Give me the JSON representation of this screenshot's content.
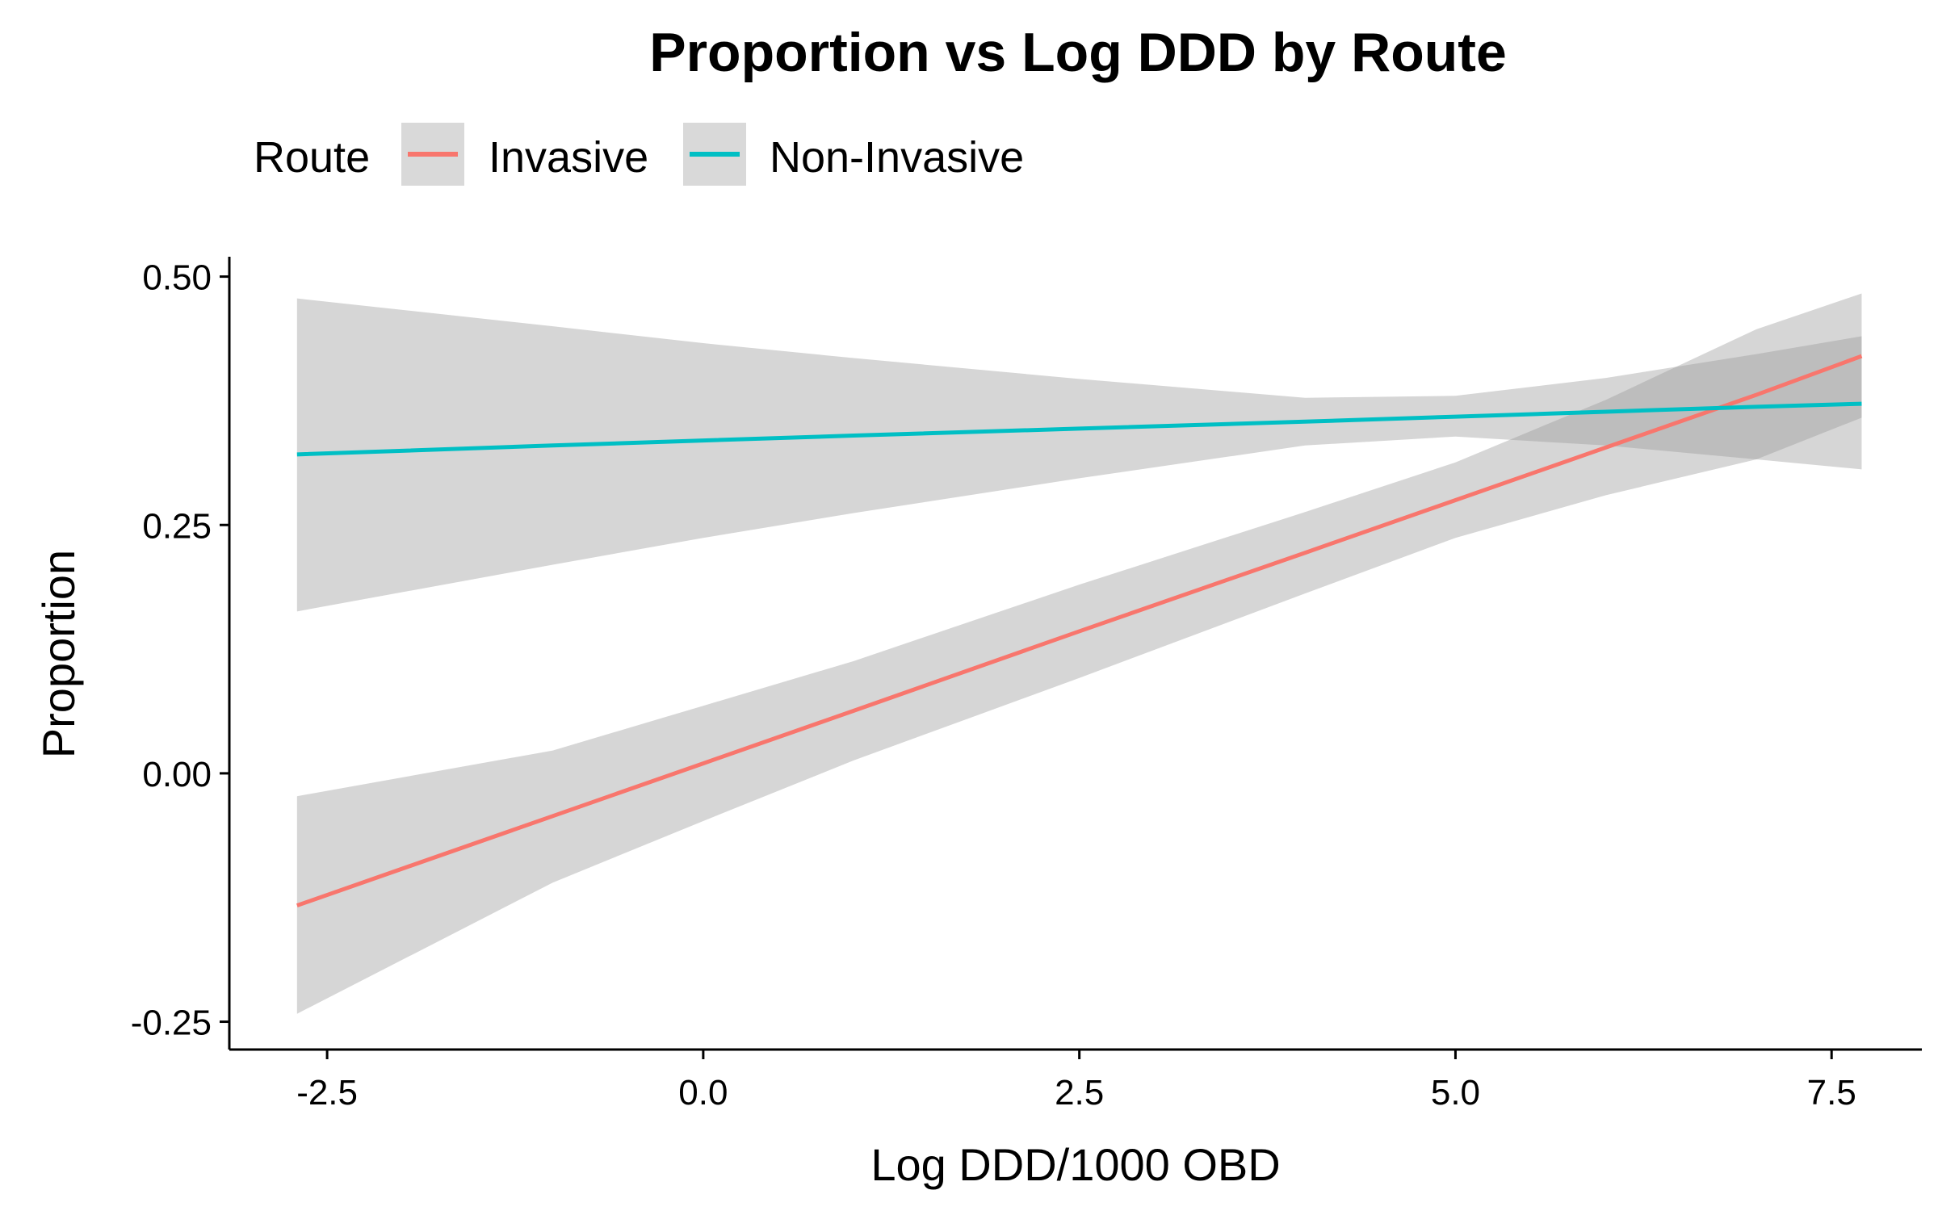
{
  "chart_data": {
    "type": "line",
    "title": "Proportion vs Log DDD by Route",
    "xlabel": "Log DDD/1000 OBD",
    "ylabel": "Proportion",
    "legend": {
      "title": "Route",
      "placement": "top-left",
      "entries": [
        "Invasive",
        "Non-Invasive"
      ]
    },
    "xlim": [
      -3.15,
      8.1
    ],
    "ylim": [
      -0.278,
      0.52
    ],
    "x_ticks": [
      -2.5,
      0.0,
      2.5,
      5.0,
      7.5
    ],
    "x_tick_labels": [
      "-2.5",
      "0.0",
      "2.5",
      "5.0",
      "7.5"
    ],
    "y_ticks": [
      -0.25,
      0.0,
      0.25,
      0.5
    ],
    "y_tick_labels": [
      "-0.25",
      "0.00",
      "0.25",
      "0.50"
    ],
    "grid": false,
    "series": [
      {
        "name": "Invasive",
        "color": "#F8766D",
        "x": [
          -2.7,
          -1.0,
          0.0,
          1.0,
          2.5,
          4.0,
          5.0,
          6.0,
          7.0,
          7.7
        ],
        "y": [
          -0.133,
          -0.043,
          0.01,
          0.063,
          0.143,
          0.222,
          0.275,
          0.328,
          0.381,
          0.42
        ],
        "ci_lower": [
          -0.242,
          -0.11,
          -0.048,
          0.013,
          0.096,
          0.181,
          0.237,
          0.28,
          0.316,
          0.358
        ],
        "ci_upper": [
          -0.023,
          0.023,
          0.068,
          0.113,
          0.19,
          0.263,
          0.313,
          0.376,
          0.447,
          0.483
        ]
      },
      {
        "name": "Non-Invasive",
        "color": "#00BFC4",
        "x": [
          -2.7,
          -1.0,
          0.0,
          1.0,
          2.5,
          4.0,
          5.0,
          6.0,
          7.0,
          7.7
        ],
        "y": [
          0.321,
          0.33,
          0.335,
          0.34,
          0.347,
          0.354,
          0.359,
          0.364,
          0.369,
          0.372
        ],
        "ci_lower": [
          0.163,
          0.21,
          0.237,
          0.262,
          0.297,
          0.33,
          0.339,
          0.33,
          0.316,
          0.306
        ],
        "ci_upper": [
          0.478,
          0.45,
          0.433,
          0.418,
          0.397,
          0.378,
          0.38,
          0.398,
          0.422,
          0.44
        ]
      }
    ],
    "ribbon_color": "#999999"
  }
}
